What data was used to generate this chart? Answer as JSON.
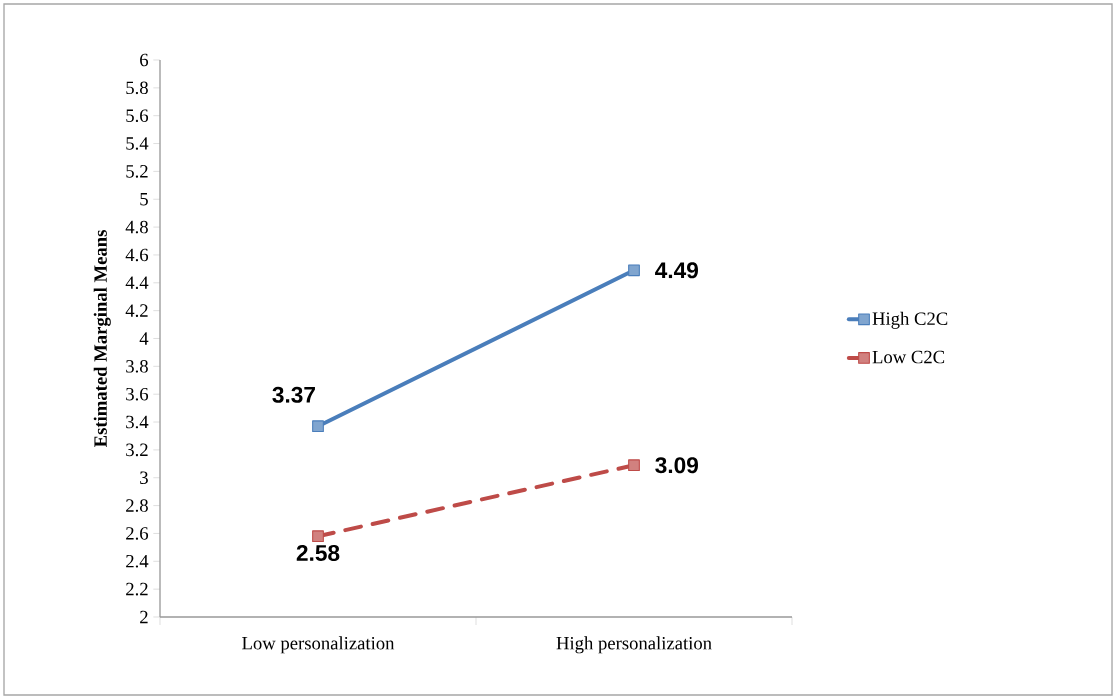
{
  "chart_data": {
    "type": "line",
    "ylabel": "Estimated Marginal Means",
    "categories": [
      "Low personalization",
      "High personalization"
    ],
    "series": [
      {
        "name": "High C2C",
        "color": "#4a7ebb",
        "values": [
          3.37,
          4.49
        ],
        "line_style": "solid"
      },
      {
        "name": "Low C2C",
        "color": "#be4b48",
        "values": [
          2.58,
          3.09
        ],
        "line_style": "dashed"
      }
    ],
    "ylim": [
      2,
      6
    ],
    "yticks": [
      2,
      2.2,
      2.4,
      2.6,
      2.8,
      3,
      3.2,
      3.4,
      3.6,
      3.8,
      4,
      4.2,
      4.4,
      4.6,
      4.8,
      5,
      5.2,
      5.4,
      5.6,
      5.8,
      6
    ],
    "data_labels": true,
    "marker": "square",
    "legend": "right",
    "grid": false
  }
}
